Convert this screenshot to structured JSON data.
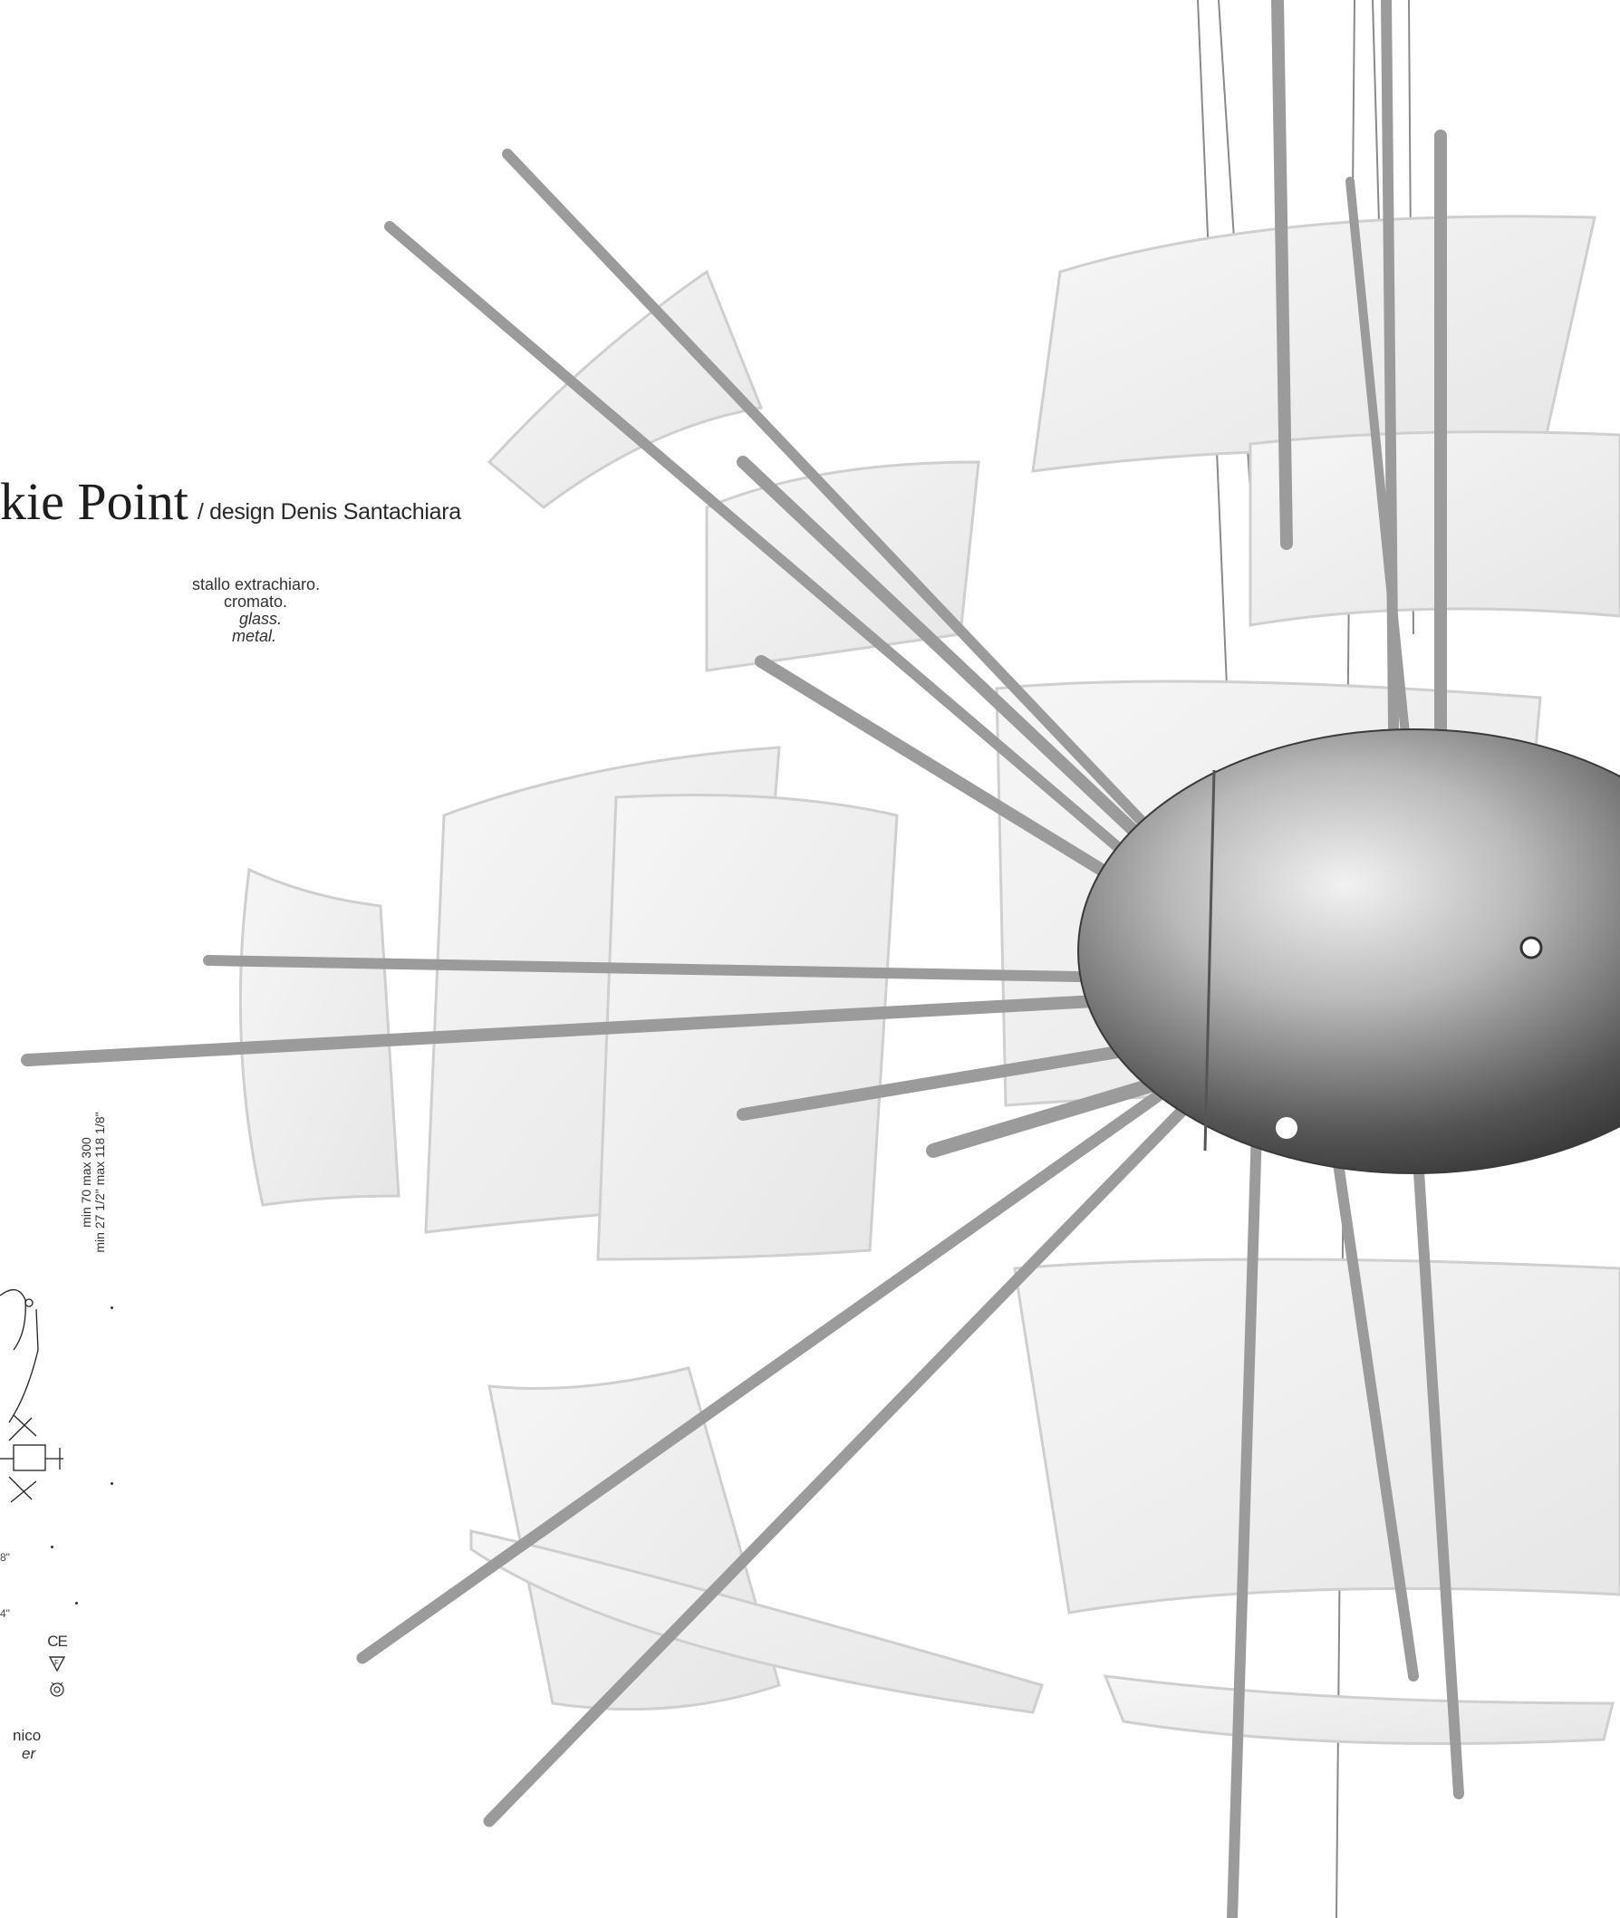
{
  "header": {
    "title": "kie Point",
    "designer": "/ design Denis Santachiara"
  },
  "materials": {
    "line1": "stallo extrachiaro.",
    "line2": "cromato.",
    "line3": "glass.",
    "line4": "metal."
  },
  "dimensions": {
    "height_cm": "min 70  max 300",
    "height_in": "min 27 1/2\"  max 118 1/8\"",
    "width_a": "8\"",
    "width_b": "4\""
  },
  "certifications": {
    "ce": "CE",
    "f_mark": "F-mark-icon",
    "bulb_mark": "bulb-safety-icon"
  },
  "footnote": {
    "line1": "nico",
    "line2": "er"
  }
}
